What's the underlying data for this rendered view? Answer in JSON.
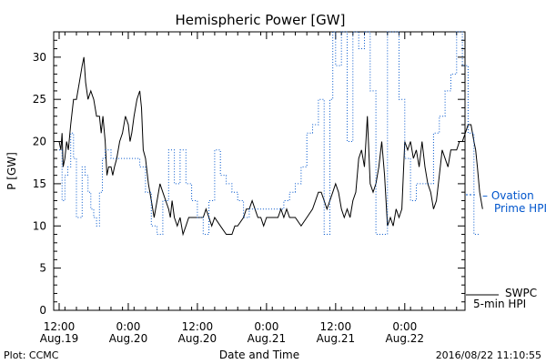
{
  "chart_data": {
    "type": "line",
    "title": "Hemispheric Power [GW]",
    "ylabel": "P [GW]",
    "xlabel": "Date and Time",
    "ylim": [
      0,
      33
    ],
    "yticks": [
      0,
      5,
      10,
      15,
      20,
      25,
      30
    ],
    "xlim": [
      0,
      96
    ],
    "xticks": [
      {
        "x": 0,
        "time": "12:00",
        "date": "Aug.19"
      },
      {
        "x": 12,
        "time": "0:00",
        "date": "Aug.20"
      },
      {
        "x": 24,
        "time": "12:00",
        "date": "Aug.20"
      },
      {
        "x": 36,
        "time": "0:00",
        "date": "Aug.21"
      },
      {
        "x": 48,
        "time": "12:00",
        "date": "Aug.21"
      },
      {
        "x": 60,
        "time": "0:00",
        "date": "Aug.22"
      }
    ],
    "x_unit_note": "",
    "grid": false,
    "series": [
      {
        "name": "SWPC 5-min HPI",
        "color": "#000000",
        "style": "solid",
        "points": [
          [
            0,
            20
          ],
          [
            0.3,
            19
          ],
          [
            0.5,
            21
          ],
          [
            0.7,
            17
          ],
          [
            1,
            18
          ],
          [
            1.3,
            20
          ],
          [
            1.6,
            19
          ],
          [
            2,
            22
          ],
          [
            2.5,
            25
          ],
          [
            3,
            25
          ],
          [
            3.5,
            27
          ],
          [
            4,
            29
          ],
          [
            4.3,
            30
          ],
          [
            4.6,
            27
          ],
          [
            5,
            25
          ],
          [
            5.5,
            26
          ],
          [
            6,
            25
          ],
          [
            6.5,
            23
          ],
          [
            7,
            23
          ],
          [
            7.3,
            21
          ],
          [
            7.6,
            23
          ],
          [
            8,
            20
          ],
          [
            8.3,
            16
          ],
          [
            8.6,
            17
          ],
          [
            9,
            17
          ],
          [
            9.3,
            16
          ],
          [
            9.6,
            17
          ],
          [
            10,
            18
          ],
          [
            10.5,
            20
          ],
          [
            11,
            21
          ],
          [
            11.5,
            23
          ],
          [
            12,
            22
          ],
          [
            12.3,
            20
          ],
          [
            12.6,
            21
          ],
          [
            13,
            23
          ],
          [
            13.5,
            25
          ],
          [
            14,
            26
          ],
          [
            14.3,
            24
          ],
          [
            14.6,
            19
          ],
          [
            15,
            18
          ],
          [
            15.5,
            15
          ],
          [
            16,
            13
          ],
          [
            16.5,
            11
          ],
          [
            17,
            13
          ],
          [
            17.5,
            15
          ],
          [
            18,
            14
          ],
          [
            18.5,
            13
          ],
          [
            19,
            12
          ],
          [
            19.3,
            11
          ],
          [
            19.6,
            13
          ],
          [
            20,
            11
          ],
          [
            20.5,
            10
          ],
          [
            21,
            11
          ],
          [
            21.5,
            9
          ],
          [
            22,
            10
          ],
          [
            22.5,
            11
          ],
          [
            23,
            11
          ],
          [
            24,
            11
          ],
          [
            25,
            11
          ],
          [
            25.5,
            12
          ],
          [
            26,
            11
          ],
          [
            26.5,
            10
          ],
          [
            27,
            11
          ],
          [
            28,
            10
          ],
          [
            29,
            9
          ],
          [
            30,
            9
          ],
          [
            30.5,
            10
          ],
          [
            31,
            10
          ],
          [
            32,
            11
          ],
          [
            32.5,
            12
          ],
          [
            33,
            12
          ],
          [
            33.5,
            13
          ],
          [
            34,
            12
          ],
          [
            34.5,
            11
          ],
          [
            35,
            11
          ],
          [
            35.5,
            10
          ],
          [
            36,
            11
          ],
          [
            37,
            11
          ],
          [
            38,
            11
          ],
          [
            38.5,
            12
          ],
          [
            39,
            11
          ],
          [
            39.5,
            12
          ],
          [
            40,
            11
          ],
          [
            41,
            11
          ],
          [
            42,
            10
          ],
          [
            43,
            11
          ],
          [
            44,
            12
          ],
          [
            44.5,
            13
          ],
          [
            45,
            14
          ],
          [
            45.5,
            14
          ],
          [
            46,
            13
          ],
          [
            46.5,
            12
          ],
          [
            47,
            13
          ],
          [
            47.5,
            14
          ],
          [
            48,
            15
          ],
          [
            48.5,
            14
          ],
          [
            49,
            12
          ],
          [
            49.5,
            11
          ],
          [
            50,
            12
          ],
          [
            50.5,
            11
          ],
          [
            51,
            13
          ],
          [
            51.5,
            14
          ],
          [
            52,
            18
          ],
          [
            52.5,
            19
          ],
          [
            53,
            17
          ],
          [
            53.5,
            23
          ],
          [
            54,
            15
          ],
          [
            54.5,
            14
          ],
          [
            55,
            15
          ],
          [
            55.5,
            17
          ],
          [
            56,
            20
          ],
          [
            56.5,
            16
          ],
          [
            57,
            10
          ],
          [
            57.5,
            11
          ],
          [
            58,
            10
          ],
          [
            58.5,
            12
          ],
          [
            59,
            11
          ],
          [
            59.5,
            12
          ],
          [
            60,
            20
          ],
          [
            60.5,
            19
          ],
          [
            61,
            20
          ],
          [
            61.5,
            18
          ],
          [
            62,
            19
          ],
          [
            62.5,
            17
          ],
          [
            63,
            20
          ],
          [
            63.5,
            17
          ],
          [
            64,
            15
          ],
          [
            64.5,
            14
          ],
          [
            65,
            12
          ],
          [
            65.5,
            13
          ],
          [
            66,
            16
          ],
          [
            66.5,
            19
          ],
          [
            67,
            18
          ],
          [
            67.5,
            17
          ],
          [
            68,
            19
          ],
          [
            68.5,
            19
          ],
          [
            69,
            19
          ],
          [
            69.5,
            20
          ],
          [
            70,
            20
          ],
          [
            70.5,
            21
          ],
          [
            71,
            22
          ],
          [
            71.5,
            22
          ],
          [
            72,
            20
          ],
          [
            72.3,
            19
          ],
          [
            72.6,
            17
          ],
          [
            73,
            14
          ],
          [
            73.5,
            12
          ]
        ]
      },
      {
        "name": "Ovation Prime HPI",
        "color": "#0055cc",
        "style": "dotted",
        "points": [
          [
            0,
            19
          ],
          [
            0.5,
            19
          ],
          [
            0.5,
            13
          ],
          [
            1,
            13
          ],
          [
            1,
            16
          ],
          [
            1.5,
            16
          ],
          [
            1.5,
            17
          ],
          [
            2,
            17
          ],
          [
            2,
            21
          ],
          [
            2.5,
            21
          ],
          [
            2.5,
            18
          ],
          [
            3,
            18
          ],
          [
            3,
            11
          ],
          [
            3.5,
            11
          ],
          [
            3.5,
            11
          ],
          [
            4,
            11
          ],
          [
            4,
            17
          ],
          [
            4.5,
            17
          ],
          [
            4.5,
            16
          ],
          [
            5,
            16
          ],
          [
            5,
            14
          ],
          [
            5.5,
            14
          ],
          [
            5.5,
            12
          ],
          [
            6,
            12
          ],
          [
            6,
            11
          ],
          [
            6.5,
            11
          ],
          [
            6.5,
            10
          ],
          [
            7,
            10
          ],
          [
            7,
            14
          ],
          [
            7.5,
            14
          ],
          [
            7.5,
            18
          ],
          [
            8,
            18
          ],
          [
            8,
            19
          ],
          [
            9,
            19
          ],
          [
            9,
            18
          ],
          [
            13,
            18
          ],
          [
            13,
            18
          ],
          [
            14,
            18
          ],
          [
            14,
            17
          ],
          [
            15,
            17
          ],
          [
            15,
            14
          ],
          [
            16,
            14
          ],
          [
            16,
            10
          ],
          [
            17,
            10
          ],
          [
            17,
            9
          ],
          [
            18,
            9
          ],
          [
            18,
            13
          ],
          [
            19,
            13
          ],
          [
            19,
            19
          ],
          [
            20,
            19
          ],
          [
            20,
            15
          ],
          [
            21,
            15
          ],
          [
            21,
            19
          ],
          [
            22,
            19
          ],
          [
            22,
            15
          ],
          [
            23,
            15
          ],
          [
            23,
            13
          ],
          [
            24,
            13
          ],
          [
            24,
            11
          ],
          [
            25,
            11
          ],
          [
            25,
            9
          ],
          [
            26,
            9
          ],
          [
            26,
            13
          ],
          [
            27,
            13
          ],
          [
            27,
            19
          ],
          [
            28,
            19
          ],
          [
            28,
            16
          ],
          [
            29,
            16
          ],
          [
            29,
            15
          ],
          [
            30,
            15
          ],
          [
            30,
            14
          ],
          [
            31,
            14
          ],
          [
            31,
            13
          ],
          [
            32,
            13
          ],
          [
            32,
            11
          ],
          [
            33,
            11
          ],
          [
            33,
            12
          ],
          [
            36,
            12
          ],
          [
            36,
            12
          ],
          [
            38,
            12
          ],
          [
            38,
            12
          ],
          [
            39,
            12
          ],
          [
            39,
            13
          ],
          [
            40,
            13
          ],
          [
            40,
            14
          ],
          [
            41,
            14
          ],
          [
            41,
            15
          ],
          [
            42,
            15
          ],
          [
            42,
            17
          ],
          [
            43,
            17
          ],
          [
            43,
            21
          ],
          [
            44,
            21
          ],
          [
            44,
            22
          ],
          [
            45,
            22
          ],
          [
            45,
            25
          ],
          [
            46,
            25
          ],
          [
            46,
            9
          ],
          [
            47,
            9
          ],
          [
            47,
            25
          ],
          [
            47.5,
            25
          ],
          [
            47.5,
            33
          ],
          [
            48,
            33
          ],
          [
            48,
            29
          ],
          [
            49,
            29
          ],
          [
            49,
            33
          ],
          [
            50,
            33
          ],
          [
            50,
            20
          ],
          [
            51,
            20
          ],
          [
            51,
            33
          ],
          [
            52,
            33
          ],
          [
            52,
            31
          ],
          [
            53,
            31
          ],
          [
            53,
            33
          ],
          [
            54,
            33
          ],
          [
            54,
            26
          ],
          [
            55,
            26
          ],
          [
            55,
            9
          ],
          [
            57,
            9
          ],
          [
            57,
            33
          ],
          [
            58,
            33
          ],
          [
            58,
            33
          ],
          [
            59,
            33
          ],
          [
            59,
            25
          ],
          [
            60,
            25
          ],
          [
            60,
            18
          ],
          [
            61,
            18
          ],
          [
            61,
            13
          ],
          [
            62,
            13
          ],
          [
            62,
            15
          ],
          [
            64,
            15
          ],
          [
            64,
            15
          ],
          [
            65,
            15
          ],
          [
            65,
            21
          ],
          [
            66,
            21
          ],
          [
            66,
            23
          ],
          [
            67,
            23
          ],
          [
            67,
            26
          ],
          [
            68,
            26
          ],
          [
            68,
            28
          ],
          [
            69,
            28
          ],
          [
            69,
            33
          ],
          [
            70,
            33
          ],
          [
            70,
            29
          ],
          [
            71,
            29
          ],
          [
            71,
            21
          ],
          [
            72,
            21
          ],
          [
            72,
            9
          ],
          [
            73,
            9
          ]
        ]
      }
    ],
    "legend": [
      {
        "label_line1": "– Ovation",
        "label_line2": "Prime HPI",
        "color": "#0055cc",
        "position": "right-middle"
      },
      {
        "label_line1": "SWPC",
        "label_line2": "5-min HPI",
        "color": "#000000",
        "position": "right-bottom"
      }
    ],
    "footer": {
      "left": "Plot: CCMC",
      "right": "2016/08/22 11:10:55"
    }
  }
}
